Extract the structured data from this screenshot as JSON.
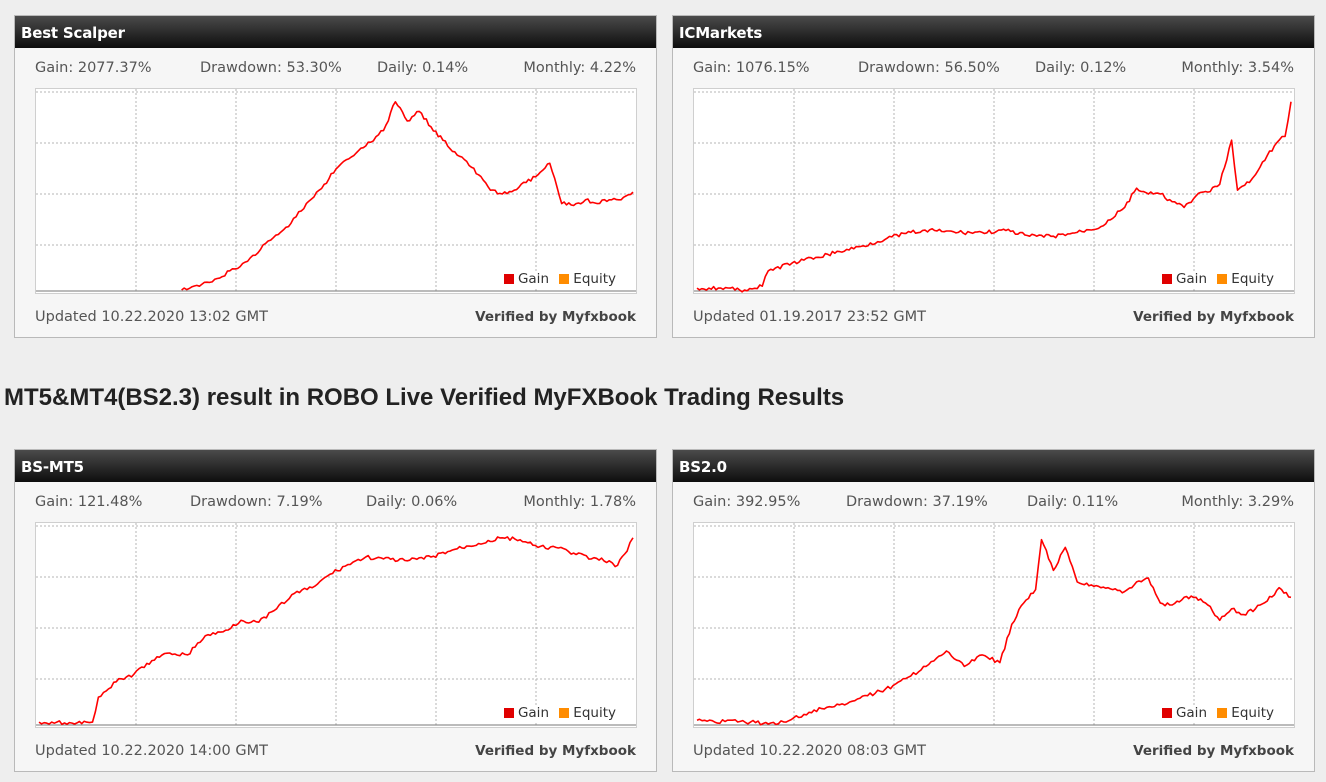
{
  "section_title": "MT5&MT4(BS2.3) result in ROBO Live Verified MyFXBook Trading Results",
  "colors": {
    "gain": "#ff0000",
    "equity": "#ff8c00",
    "grid": "#b5b5b5"
  },
  "widgets": [
    {
      "title": "Best Scalper",
      "stats": {
        "gain_label": "Gain:",
        "gain": "2077.37%",
        "drawdown_label": "Drawdown:",
        "drawdown": "53.30%",
        "daily_label": "Daily:",
        "daily": "0.14%",
        "monthly_label": "Monthly:",
        "monthly": "4.22%"
      },
      "legend": {
        "gain": "Gain",
        "equity": "Equity"
      },
      "updated": "Updated 10.22.2020 13:02 GMT",
      "verified": "Verified by Myfxbook"
    },
    {
      "title": "ICMarkets",
      "stats": {
        "gain_label": "Gain:",
        "gain": "1076.15%",
        "drawdown_label": "Drawdown:",
        "drawdown": "56.50%",
        "daily_label": "Daily:",
        "daily": "0.12%",
        "monthly_label": "Monthly:",
        "monthly": "3.54%"
      },
      "legend": {
        "gain": "Gain",
        "equity": "Equity"
      },
      "updated": "Updated 01.19.2017 23:52 GMT",
      "verified": "Verified by Myfxbook"
    },
    {
      "title": "BS-MT5",
      "stats": {
        "gain_label": "Gain:",
        "gain": "121.48%",
        "drawdown_label": "Drawdown:",
        "drawdown": "7.19%",
        "daily_label": "Daily:",
        "daily": "0.06%",
        "monthly_label": "Monthly:",
        "monthly": "1.78%"
      },
      "legend": {
        "gain": "Gain",
        "equity": "Equity"
      },
      "updated": "Updated 10.22.2020 14:00 GMT",
      "verified": "Verified by Myfxbook"
    },
    {
      "title": "BS2.0",
      "stats": {
        "gain_label": "Gain:",
        "gain": "392.95%",
        "drawdown_label": "Drawdown:",
        "drawdown": "37.19%",
        "daily_label": "Daily:",
        "daily": "0.11%",
        "monthly_label": "Monthly:",
        "monthly": "3.29%"
      },
      "legend": {
        "gain": "Gain",
        "equity": "Equity"
      },
      "updated": "Updated 10.22.2020 08:03 GMT",
      "verified": "Verified by Myfxbook"
    }
  ],
  "chart_data": [
    {
      "type": "line",
      "title": "Best Scalper",
      "xlabel": "",
      "ylabel": "",
      "grid": true,
      "legend_position": "bottom-right",
      "ylim": [
        0,
        100
      ],
      "x": [
        0,
        3,
        6,
        9,
        12,
        15,
        18,
        21,
        24,
        27,
        30,
        33,
        36,
        39,
        42,
        45,
        48,
        50,
        53,
        55,
        58,
        60,
        62,
        64,
        66,
        68,
        70,
        72,
        74,
        76,
        78,
        80,
        82,
        84,
        86,
        88,
        90,
        92,
        94,
        96,
        98,
        100
      ],
      "series": [
        {
          "name": "Gain",
          "values": [
            null,
            null,
            null,
            null,
            null,
            null,
            null,
            null,
            0,
            2,
            6,
            11,
            18,
            26,
            33,
            45,
            55,
            63,
            70,
            75,
            83,
            98,
            88,
            93,
            85,
            78,
            72,
            67,
            60,
            52,
            50,
            52,
            56,
            60,
            66,
            45,
            44,
            47,
            45,
            47,
            47,
            51
          ]
        }
      ]
    },
    {
      "type": "line",
      "title": "ICMarkets",
      "xlabel": "",
      "ylabel": "",
      "grid": true,
      "legend_position": "bottom-right",
      "ylim": [
        0,
        100
      ],
      "x": [
        0,
        4,
        8,
        11,
        12,
        16,
        20,
        24,
        28,
        32,
        36,
        40,
        44,
        48,
        52,
        56,
        60,
        64,
        68,
        72,
        74,
        76,
        78,
        80,
        82,
        84,
        86,
        88,
        90,
        91,
        93,
        94,
        96,
        98,
        99,
        100
      ],
      "series": [
        {
          "name": "Gain",
          "values": [
            1,
            1,
            0,
            2,
            10,
            14,
            17,
            20,
            23,
            27,
            30,
            31,
            30,
            30,
            31,
            28,
            28,
            30,
            33,
            43,
            53,
            50,
            50,
            46,
            43,
            49,
            51,
            55,
            78,
            52,
            56,
            60,
            70,
            78,
            80,
            98
          ]
        }
      ]
    },
    {
      "type": "line",
      "title": "BS-MT5",
      "xlabel": "",
      "ylabel": "",
      "grid": true,
      "legend_position": "bottom-right",
      "ylim": [
        0,
        100
      ],
      "x": [
        0,
        3,
        6,
        8,
        9,
        10,
        13,
        16,
        19,
        22,
        25,
        28,
        31,
        34,
        37,
        40,
        43,
        46,
        49,
        52,
        55,
        58,
        62,
        66,
        70,
        74,
        78,
        81,
        84,
        87,
        90,
        93,
        96,
        97,
        99,
        100
      ],
      "series": [
        {
          "name": "Gain",
          "values": [
            1,
            1,
            0,
            1,
            1,
            14,
            22,
            26,
            33,
            37,
            36,
            46,
            48,
            54,
            53,
            60,
            68,
            71,
            78,
            83,
            87,
            86,
            85,
            87,
            91,
            94,
            97,
            96,
            92,
            92,
            89,
            86,
            85,
            82,
            90,
            97
          ]
        }
      ]
    },
    {
      "type": "line",
      "title": "BS2.0",
      "xlabel": "",
      "ylabel": "",
      "grid": true,
      "legend_position": "bottom-right",
      "ylim": [
        0,
        100
      ],
      "x": [
        0,
        3,
        6,
        9,
        12,
        15,
        18,
        21,
        24,
        27,
        30,
        33,
        36,
        39,
        42,
        45,
        48,
        51,
        53,
        55,
        57,
        58,
        60,
        62,
        64,
        66,
        68,
        70,
        72,
        74,
        76,
        78,
        80,
        82,
        84,
        86,
        88,
        90,
        92,
        94,
        96,
        98,
        100
      ],
      "series": [
        {
          "name": "Gain",
          "values": [
            2,
            1,
            2,
            1,
            0,
            1,
            5,
            8,
            10,
            13,
            16,
            20,
            25,
            31,
            38,
            30,
            36,
            32,
            52,
            63,
            70,
            96,
            80,
            92,
            74,
            72,
            71,
            70,
            69,
            74,
            76,
            63,
            62,
            66,
            66,
            62,
            54,
            60,
            57,
            60,
            64,
            71,
            66
          ]
        }
      ]
    }
  ]
}
